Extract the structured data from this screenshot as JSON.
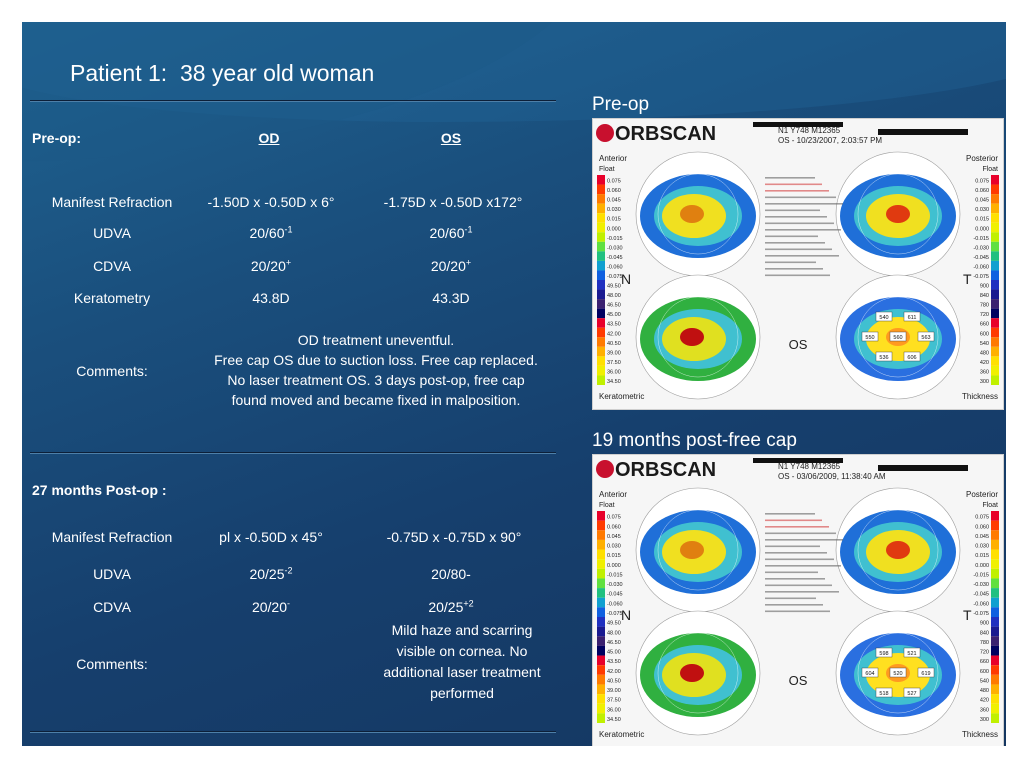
{
  "title": "Patient 1:  38 year old woman",
  "preop_section": {
    "label": "Pre-op:",
    "col_od": "OD",
    "col_os": "OS",
    "rows": [
      {
        "label": "Manifest Refraction",
        "od": "-1.50D x -0.50D x 6°",
        "os": "-1.75D x -0.50D x172°"
      },
      {
        "label": "UDVA",
        "od": "20/60",
        "od_sup": "-1",
        "os": "20/60",
        "os_sup": "-1"
      },
      {
        "label": "CDVA",
        "od": "20/20",
        "od_sup": "+",
        "os": "20/20",
        "os_sup": "+"
      },
      {
        "label": "Keratometry",
        "od": "43.8D",
        "os": "43.3D"
      }
    ],
    "comments_label": "Comments:",
    "comments_lines": [
      "OD treatment uneventful.",
      "Free cap OS due to suction loss.  Free cap replaced.",
      "No laser treatment OS.  3 days post-op, free cap",
      "found moved and became fixed in malposition."
    ]
  },
  "postop_section": {
    "label": "27 months Post-op :",
    "rows": [
      {
        "label": "Manifest Refraction",
        "od": "pl x -0.50D x 45°",
        "os": "-0.75D x -0.75D x 90°"
      },
      {
        "label": "UDVA",
        "od": "20/25",
        "od_sup": "-2",
        "os": "20/80-"
      },
      {
        "label": "CDVA",
        "od": "20/20",
        "od_sup": "-",
        "os": "20/25",
        "os_sup": "+2"
      }
    ],
    "comments_label": "Comments:",
    "comments_lines": [
      "Mild haze and scarring",
      "visible on cornea.  No",
      "additional laser treatment",
      "performed"
    ]
  },
  "images": [
    {
      "caption": "Pre-op",
      "brand": "ORBSCAN",
      "header_line1": "N1 Y748 M12365",
      "header_line2": "OS - 10/23/2007, 2:03:57 PM",
      "labels": {
        "tl": "Anterior",
        "tl2": "Float",
        "tr": "Posterior",
        "tr2": "Float",
        "bl": "Keratometric",
        "br": "Thickness",
        "n": "N",
        "t": "T",
        "os": "OS"
      },
      "scale_left": [
        "0.075",
        "0.060",
        "0.045",
        "0.030",
        "0.015",
        "0.000",
        "-0.015",
        "-0.030",
        "-0.045",
        "-0.060",
        "-0.075",
        "49.50",
        "48.00",
        "46.50",
        "45.00",
        "43.50",
        "42.00",
        "40.50",
        "39.00",
        "37.50",
        "36.00",
        "34.50"
      ],
      "scale_right": [
        "0.075",
        "0.060",
        "0.045",
        "0.030",
        "0.015",
        "0.000",
        "-0.015",
        "-0.030",
        "-0.045",
        "-0.060",
        "-0.075",
        "900",
        "840",
        "780",
        "720",
        "660",
        "600",
        "540",
        "480",
        "420",
        "360",
        "300"
      ],
      "pachy": [
        "540",
        "611",
        "550",
        "560",
        "563",
        "536",
        "606"
      ]
    },
    {
      "caption": "19 months post-free cap",
      "brand": "ORBSCAN",
      "header_line1": "N1 Y748 M12365",
      "header_line2": "OS - 03/06/2009, 11:38:40 AM",
      "labels": {
        "tl": "Anterior",
        "tl2": "Float",
        "tr": "Posterior",
        "tr2": "Float",
        "bl": "Keratometric",
        "br": "Thickness",
        "n": "N",
        "t": "T",
        "os": "OS"
      },
      "scale_left": [
        "0.075",
        "0.060",
        "0.045",
        "0.030",
        "0.015",
        "0.000",
        "-0.015",
        "-0.030",
        "-0.045",
        "-0.060",
        "-0.075",
        "49.50",
        "48.00",
        "46.50",
        "45.00",
        "43.50",
        "42.00",
        "40.50",
        "39.00",
        "37.50",
        "36.00",
        "34.50"
      ],
      "scale_right": [
        "0.075",
        "0.060",
        "0.045",
        "0.030",
        "0.015",
        "0.000",
        "-0.015",
        "-0.030",
        "-0.045",
        "-0.060",
        "-0.075",
        "900",
        "840",
        "780",
        "720",
        "660",
        "600",
        "540",
        "480",
        "420",
        "360",
        "300"
      ],
      "pachy": [
        "598",
        "521",
        "604",
        "520",
        "619",
        "518",
        "527"
      ]
    }
  ],
  "colors": {
    "background_top": "#1f6391",
    "background_bottom": "#143660",
    "text": "#ffffff",
    "rule": "#0c1f38"
  }
}
